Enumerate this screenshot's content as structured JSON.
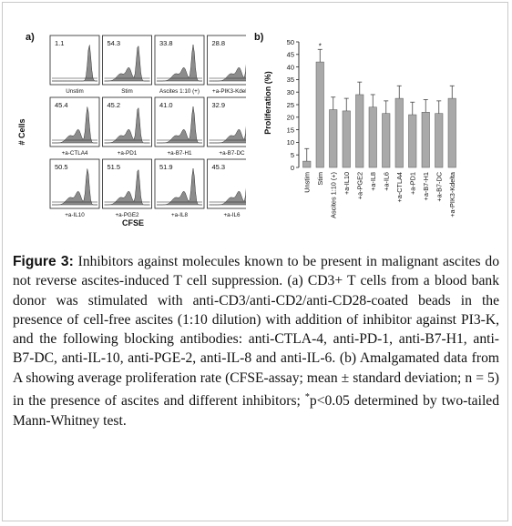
{
  "panel_a": {
    "label": "a)",
    "y_axis_label": "# Cells",
    "x_axis_label": "CFSE",
    "histograms": [
      {
        "value": "1.1",
        "label": "Unstim"
      },
      {
        "value": "54.3",
        "label": "Stim"
      },
      {
        "value": "33.8",
        "label": "Ascites 1:10 (+)"
      },
      {
        "value": "28.8",
        "label": "+a-PIK3-Kdelta"
      },
      {
        "value": "45.4",
        "label": "+a-CTLA4"
      },
      {
        "value": "45.2",
        "label": "+a-PD1"
      },
      {
        "value": "41.0",
        "label": "+a-B7-H1"
      },
      {
        "value": "32.9",
        "label": "+a-B7-DC"
      },
      {
        "value": "50.5",
        "label": "+a-IL10"
      },
      {
        "value": "51.5",
        "label": "+a-PGE2"
      },
      {
        "value": "51.9",
        "label": "+a-IL8"
      },
      {
        "value": "45.3",
        "label": "+a-IL6"
      }
    ]
  },
  "chart_data": {
    "type": "bar",
    "label": "b)",
    "ylabel": "Proliferation (%)",
    "ylim": [
      0,
      50
    ],
    "yticks": [
      0,
      5,
      10,
      15,
      20,
      25,
      30,
      35,
      40,
      45,
      50
    ],
    "categories": [
      "Unstim",
      "Stim",
      "Ascites 1:10 (+)",
      "+a-IL10",
      "+a-PGE2",
      "+a-IL8",
      "+a-IL6",
      "+a-CTLA4",
      "+a-PD1",
      "+a-B7-H1",
      "+a-B7-DC",
      "+a-PIK3-Kdelta"
    ],
    "values": [
      2.5,
      42,
      23,
      22.5,
      29,
      24,
      21.5,
      27.5,
      21,
      22,
      21.5,
      27.5
    ],
    "errors": [
      5,
      5,
      5,
      5,
      5,
      5,
      5,
      5,
      5,
      5,
      5,
      5
    ],
    "significance_marker": "*",
    "significance_index": 1,
    "bar_color": "#a9a9a9"
  },
  "caption": {
    "figure_label": "Figure 3:",
    "text_1": "Inhibitors against molecules known to be present in malignant ascites do not reverse ascites-induced T cell suppression. (a) CD3+ T cells from a blood bank donor was stimulated with anti-CD3/anti-CD2/anti-CD28-coated beads in the presence of cell-free ascites (1:10 dilution) with addition of inhibitor against PI3-K, and the following blocking antibodies: anti-CTLA-4, anti-PD-1, anti-B7-H1, anti-B7-DC, anti-IL-10, anti-PGE-2, anti-IL-8 and anti-IL-6. (b) Amalgamated data from A showing average proliferation rate (CFSE-assay; mean ± standard deviation; n = 5) in the presence of ascites and different inhibitors;",
    "sup": "*",
    "text_2": "p<0.05 determined by two-tailed Mann-Whitney test."
  }
}
